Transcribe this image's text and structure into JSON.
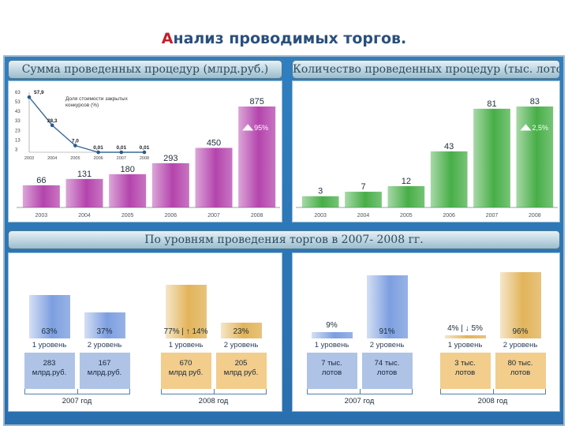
{
  "slide": {
    "title_first": "А",
    "title_rest": "нализ проводимых торгов."
  },
  "headers": {
    "sum": "Сумма проведенных процедур (млрд.руб.)",
    "count": "Количество проведенных процедур (тыс. лотов)",
    "levels": "По уровням проведения торгов в 2007- 2008 гг."
  },
  "chart_data": [
    {
      "type": "bar",
      "categories": [
        "2003",
        "2004",
        "2005",
        "2006",
        "2007",
        "2008"
      ],
      "values": [
        66,
        131,
        180,
        293,
        450,
        875
      ],
      "value_labels": [
        "66",
        "131",
        "180",
        "293",
        "450",
        "875"
      ],
      "annotation": "95%",
      "color": "#b03aa8"
    },
    {
      "type": "line",
      "label": "Доля стоимости закрытых конкурсов (%)",
      "categories": [
        "2003",
        "2004",
        "2005",
        "2006",
        "2007",
        "2008"
      ],
      "values": [
        57.9,
        28.3,
        7.0,
        0.01,
        0.01,
        0.01
      ],
      "value_labels": [
        "57,9",
        "28,3",
        "7,0",
        "0,01",
        "0,01",
        "0,01"
      ],
      "yticks": [
        "63",
        "53",
        "43",
        "33",
        "23",
        "13",
        "3"
      ],
      "ylim": [
        0,
        63
      ]
    },
    {
      "type": "bar",
      "categories": [
        "2003",
        "2004",
        "2005",
        "2006",
        "2007",
        "2008"
      ],
      "values": [
        3,
        7,
        12,
        43,
        81,
        83
      ],
      "value_labels": [
        "3",
        "7",
        "12",
        "43",
        "81",
        "83"
      ],
      "annotation": "2,5%",
      "color": "#3daa3d"
    },
    {
      "type": "bar",
      "title": "sum_by_level",
      "groups": [
        {
          "year": "2007 год",
          "items": [
            {
              "level": "1 уровень",
              "pct": "63%",
              "share": 63,
              "value_l1": "283",
              "value_l2": "млрд.руб.",
              "color": "#7d9fe0"
            },
            {
              "level": "2 уровень",
              "pct": "37%",
              "share": 37,
              "value_l1": "167",
              "value_l2": "млрд.руб.",
              "color": "#7d9fe0"
            }
          ]
        },
        {
          "year": "2008 год",
          "items": [
            {
              "level": "1 уровень",
              "pct": "77%",
              "note": "↑ 14%",
              "share": 77,
              "value_l1": "670",
              "value_l2": "млрд руб.",
              "color": "#e2b45a"
            },
            {
              "level": "2 уровень",
              "pct": "23%",
              "share": 23,
              "value_l1": "205",
              "value_l2": "млрд руб.",
              "color": "#e2b45a"
            }
          ]
        }
      ]
    },
    {
      "type": "bar",
      "title": "count_by_level",
      "groups": [
        {
          "year": "2007 год",
          "items": [
            {
              "level": "1 уровень",
              "pct": "9%",
              "share": 9,
              "value_l1": "7 тыс.",
              "value_l2": "лотов",
              "color": "#7d9fe0"
            },
            {
              "level": "2 уровень",
              "pct": "91%",
              "share": 91,
              "value_l1": "74 тыс.",
              "value_l2": "лотов",
              "color": "#7d9fe0"
            }
          ]
        },
        {
          "year": "2008 год",
          "items": [
            {
              "level": "1 уровень",
              "pct": "4%",
              "note": "↓ 5%",
              "share": 4,
              "value_l1": "3 тыс.",
              "value_l2": "лотов",
              "color": "#e2b45a"
            },
            {
              "level": "2 уровень",
              "pct": "96%",
              "share": 96,
              "value_l1": "80 тыс.",
              "value_l2": "лотов",
              "color": "#e2b45a"
            }
          ]
        }
      ]
    }
  ]
}
